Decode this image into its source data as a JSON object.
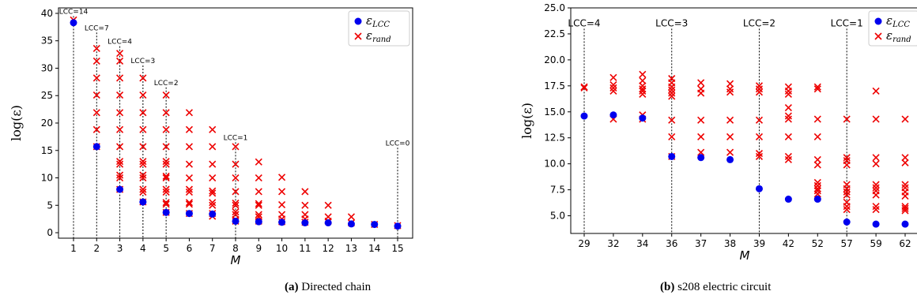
{
  "figure": {
    "captions": [
      {
        "tag": "(a)",
        "text": "Directed chain"
      },
      {
        "tag": "(b)",
        "text": "s208 electric circuit"
      }
    ]
  },
  "colors": {
    "lcc": "#0000ee",
    "rand": "#ee0000",
    "axis": "#000000",
    "text": "#000000"
  },
  "chart_data": [
    {
      "type": "scatter",
      "xlabel": "M",
      "ylabel": "log(ε)",
      "x_categories": [
        "1",
        "2",
        "3",
        "4",
        "5",
        "6",
        "7",
        "8",
        "9",
        "10",
        "11",
        "12",
        "13",
        "14",
        "15"
      ],
      "ylim": [
        -1,
        41
      ],
      "yticks": [
        0,
        5,
        10,
        15,
        20,
        25,
        30,
        35,
        40
      ],
      "ytick_labels": [
        "0",
        "5",
        "10",
        "15",
        "20",
        "25",
        "30",
        "35",
        "40"
      ],
      "legend": {
        "position": "top-right",
        "entries": [
          "ε_LCC",
          "ε_rand"
        ]
      },
      "series": [
        {
          "name": "ε_LCC",
          "marker": "circle",
          "x": [
            "1",
            "2",
            "3",
            "4",
            "5",
            "6",
            "7",
            "8",
            "9",
            "10",
            "11",
            "12",
            "13",
            "14",
            "15"
          ],
          "y": [
            38.3,
            15.7,
            7.9,
            5.6,
            3.7,
            3.5,
            3.4,
            2.1,
            2.0,
            1.9,
            1.8,
            1.8,
            1.6,
            1.5,
            1.2
          ]
        },
        {
          "name": "ε_rand",
          "marker": "x",
          "points": [
            {
              "x": "1",
              "y": [
                38.8
              ]
            },
            {
              "x": "2",
              "y": [
                33.6,
                31.3,
                28.2,
                25.1,
                21.9,
                18.8,
                15.7
              ]
            },
            {
              "x": "3",
              "y": [
                32.7,
                31.3,
                28.2,
                25.1,
                21.9,
                18.8,
                15.7,
                13.0,
                12.5,
                10.5,
                10.0,
                7.9
              ]
            },
            {
              "x": "4",
              "y": [
                28.2,
                25.1,
                21.9,
                18.8,
                15.7,
                13.0,
                12.5,
                10.5,
                10.0,
                7.9,
                7.4,
                5.6
              ]
            },
            {
              "x": "5",
              "y": [
                25.1,
                21.9,
                18.8,
                15.7,
                13.0,
                12.5,
                10.3,
                10.0,
                7.9,
                7.4,
                5.5,
                5.2,
                3.7
              ]
            },
            {
              "x": "6",
              "y": [
                21.9,
                18.8,
                15.7,
                12.5,
                10.0,
                7.9,
                7.4,
                5.5,
                5.2,
                3.5
              ]
            },
            {
              "x": "7",
              "y": [
                18.8,
                15.7,
                12.5,
                10.0,
                7.6,
                7.2,
                5.5,
                5.0,
                3.5,
                3.0
              ]
            },
            {
              "x": "8",
              "y": [
                15.7,
                12.5,
                10.0,
                7.5,
                5.4,
                5.0,
                3.8,
                3.3,
                2.4,
                2.1
              ]
            },
            {
              "x": "9",
              "y": [
                12.9,
                10.0,
                7.5,
                5.3,
                5.0,
                3.3,
                2.9,
                2.1
              ]
            },
            {
              "x": "10",
              "y": [
                10.1,
                7.5,
                5.1,
                3.3,
                2.5,
                2.0
              ]
            },
            {
              "x": "11",
              "y": [
                7.5,
                5.0,
                3.3,
                2.5,
                1.9
              ]
            },
            {
              "x": "12",
              "y": [
                5.0,
                2.9,
                2.1
              ]
            },
            {
              "x": "13",
              "y": [
                2.9,
                1.8
              ]
            },
            {
              "x": "14",
              "y": [
                1.5
              ]
            },
            {
              "x": "15",
              "y": [
                1.3
              ]
            }
          ]
        }
      ],
      "annotations": [
        {
          "x": "1",
          "text": "LCC=14",
          "y": 39.5
        },
        {
          "x": "2",
          "text": "LCC=7",
          "y": 36.5
        },
        {
          "x": "3",
          "text": "LCC=4",
          "y": 34.0
        },
        {
          "x": "4",
          "text": "LCC=3",
          "y": 30.5
        },
        {
          "x": "5",
          "text": "LCC=2",
          "y": 26.5
        },
        {
          "x": "8",
          "text": "LCC=1",
          "y": 16.5
        },
        {
          "x": "15",
          "text": "LCC=0",
          "y": 15.5
        }
      ],
      "grid": false
    },
    {
      "type": "scatter",
      "xlabel": "M",
      "ylabel": "log(ε)",
      "x_categories": [
        "29",
        "32",
        "34",
        "36",
        "37",
        "38",
        "39",
        "42",
        "52",
        "57",
        "59",
        "62"
      ],
      "ylim": [
        3.3,
        25.0
      ],
      "yticks": [
        5.0,
        7.5,
        10.0,
        12.5,
        15.0,
        17.5,
        20.0,
        22.5,
        25.0
      ],
      "ytick_labels": [
        "5.0",
        "7.5",
        "10.0",
        "12.5",
        "15.0",
        "17.5",
        "20.0",
        "22.5",
        "25.0"
      ],
      "legend": {
        "position": "top-right",
        "entries": [
          "ε_LCC",
          "ε_rand"
        ]
      },
      "series": [
        {
          "name": "ε_LCC",
          "marker": "circle",
          "x": [
            "29",
            "32",
            "34",
            "36",
            "37",
            "38",
            "39",
            "42",
            "52",
            "57",
            "59",
            "62"
          ],
          "y": [
            14.6,
            14.7,
            14.4,
            10.7,
            10.6,
            10.4,
            7.6,
            6.6,
            6.6,
            4.4,
            4.2,
            4.2
          ]
        },
        {
          "name": "ε_rand",
          "marker": "x",
          "points": [
            {
              "x": "29",
              "y": [
                17.4,
                17.3
              ]
            },
            {
              "x": "32",
              "y": [
                18.3,
                17.6,
                17.3,
                17.0,
                14.3
              ]
            },
            {
              "x": "34",
              "y": [
                18.6,
                18.0,
                17.5,
                17.2,
                17.0,
                16.7,
                14.7,
                14.3
              ]
            },
            {
              "x": "36",
              "y": [
                18.2,
                17.8,
                17.4,
                17.1,
                16.8,
                16.5,
                14.2,
                12.6,
                10.7
              ]
            },
            {
              "x": "37",
              "y": [
                17.8,
                17.2,
                16.8,
                14.2,
                12.6,
                11.1
              ]
            },
            {
              "x": "38",
              "y": [
                17.7,
                17.2,
                16.9,
                14.2,
                12.6,
                11.1
              ]
            },
            {
              "x": "39",
              "y": [
                17.5,
                17.2,
                16.9,
                14.2,
                12.6,
                11.0,
                10.7
              ]
            },
            {
              "x": "42",
              "y": [
                17.4,
                17.0,
                16.7,
                15.4,
                14.6,
                14.3,
                12.6,
                10.7,
                10.4
              ]
            },
            {
              "x": "52",
              "y": [
                17.4,
                17.2,
                14.3,
                12.6,
                10.4,
                9.9,
                8.2,
                7.9,
                7.6,
                7.4,
                7.1
              ]
            },
            {
              "x": "57",
              "y": [
                14.3,
                10.6,
                10.3,
                9.9,
                8.0,
                7.6,
                7.3,
                7.0,
                6.3,
                5.9,
                5.6
              ]
            },
            {
              "x": "59",
              "y": [
                17.0,
                14.3,
                10.6,
                10.0,
                8.0,
                7.7,
                7.4,
                7.0,
                5.9,
                5.6
              ]
            },
            {
              "x": "62",
              "y": [
                14.3,
                10.6,
                10.1,
                8.0,
                7.7,
                7.3,
                6.9,
                5.9,
                5.7,
                5.5
              ]
            }
          ]
        }
      ],
      "annotations": [
        {
          "x": "29",
          "text": "LCC=4",
          "y": 23.0
        },
        {
          "x": "36",
          "text": "LCC=3",
          "y": 23.0
        },
        {
          "x": "39",
          "text": "LCC=2",
          "y": 23.0
        },
        {
          "x": "57",
          "text": "LCC=1",
          "y": 23.0
        }
      ],
      "grid": false
    }
  ]
}
